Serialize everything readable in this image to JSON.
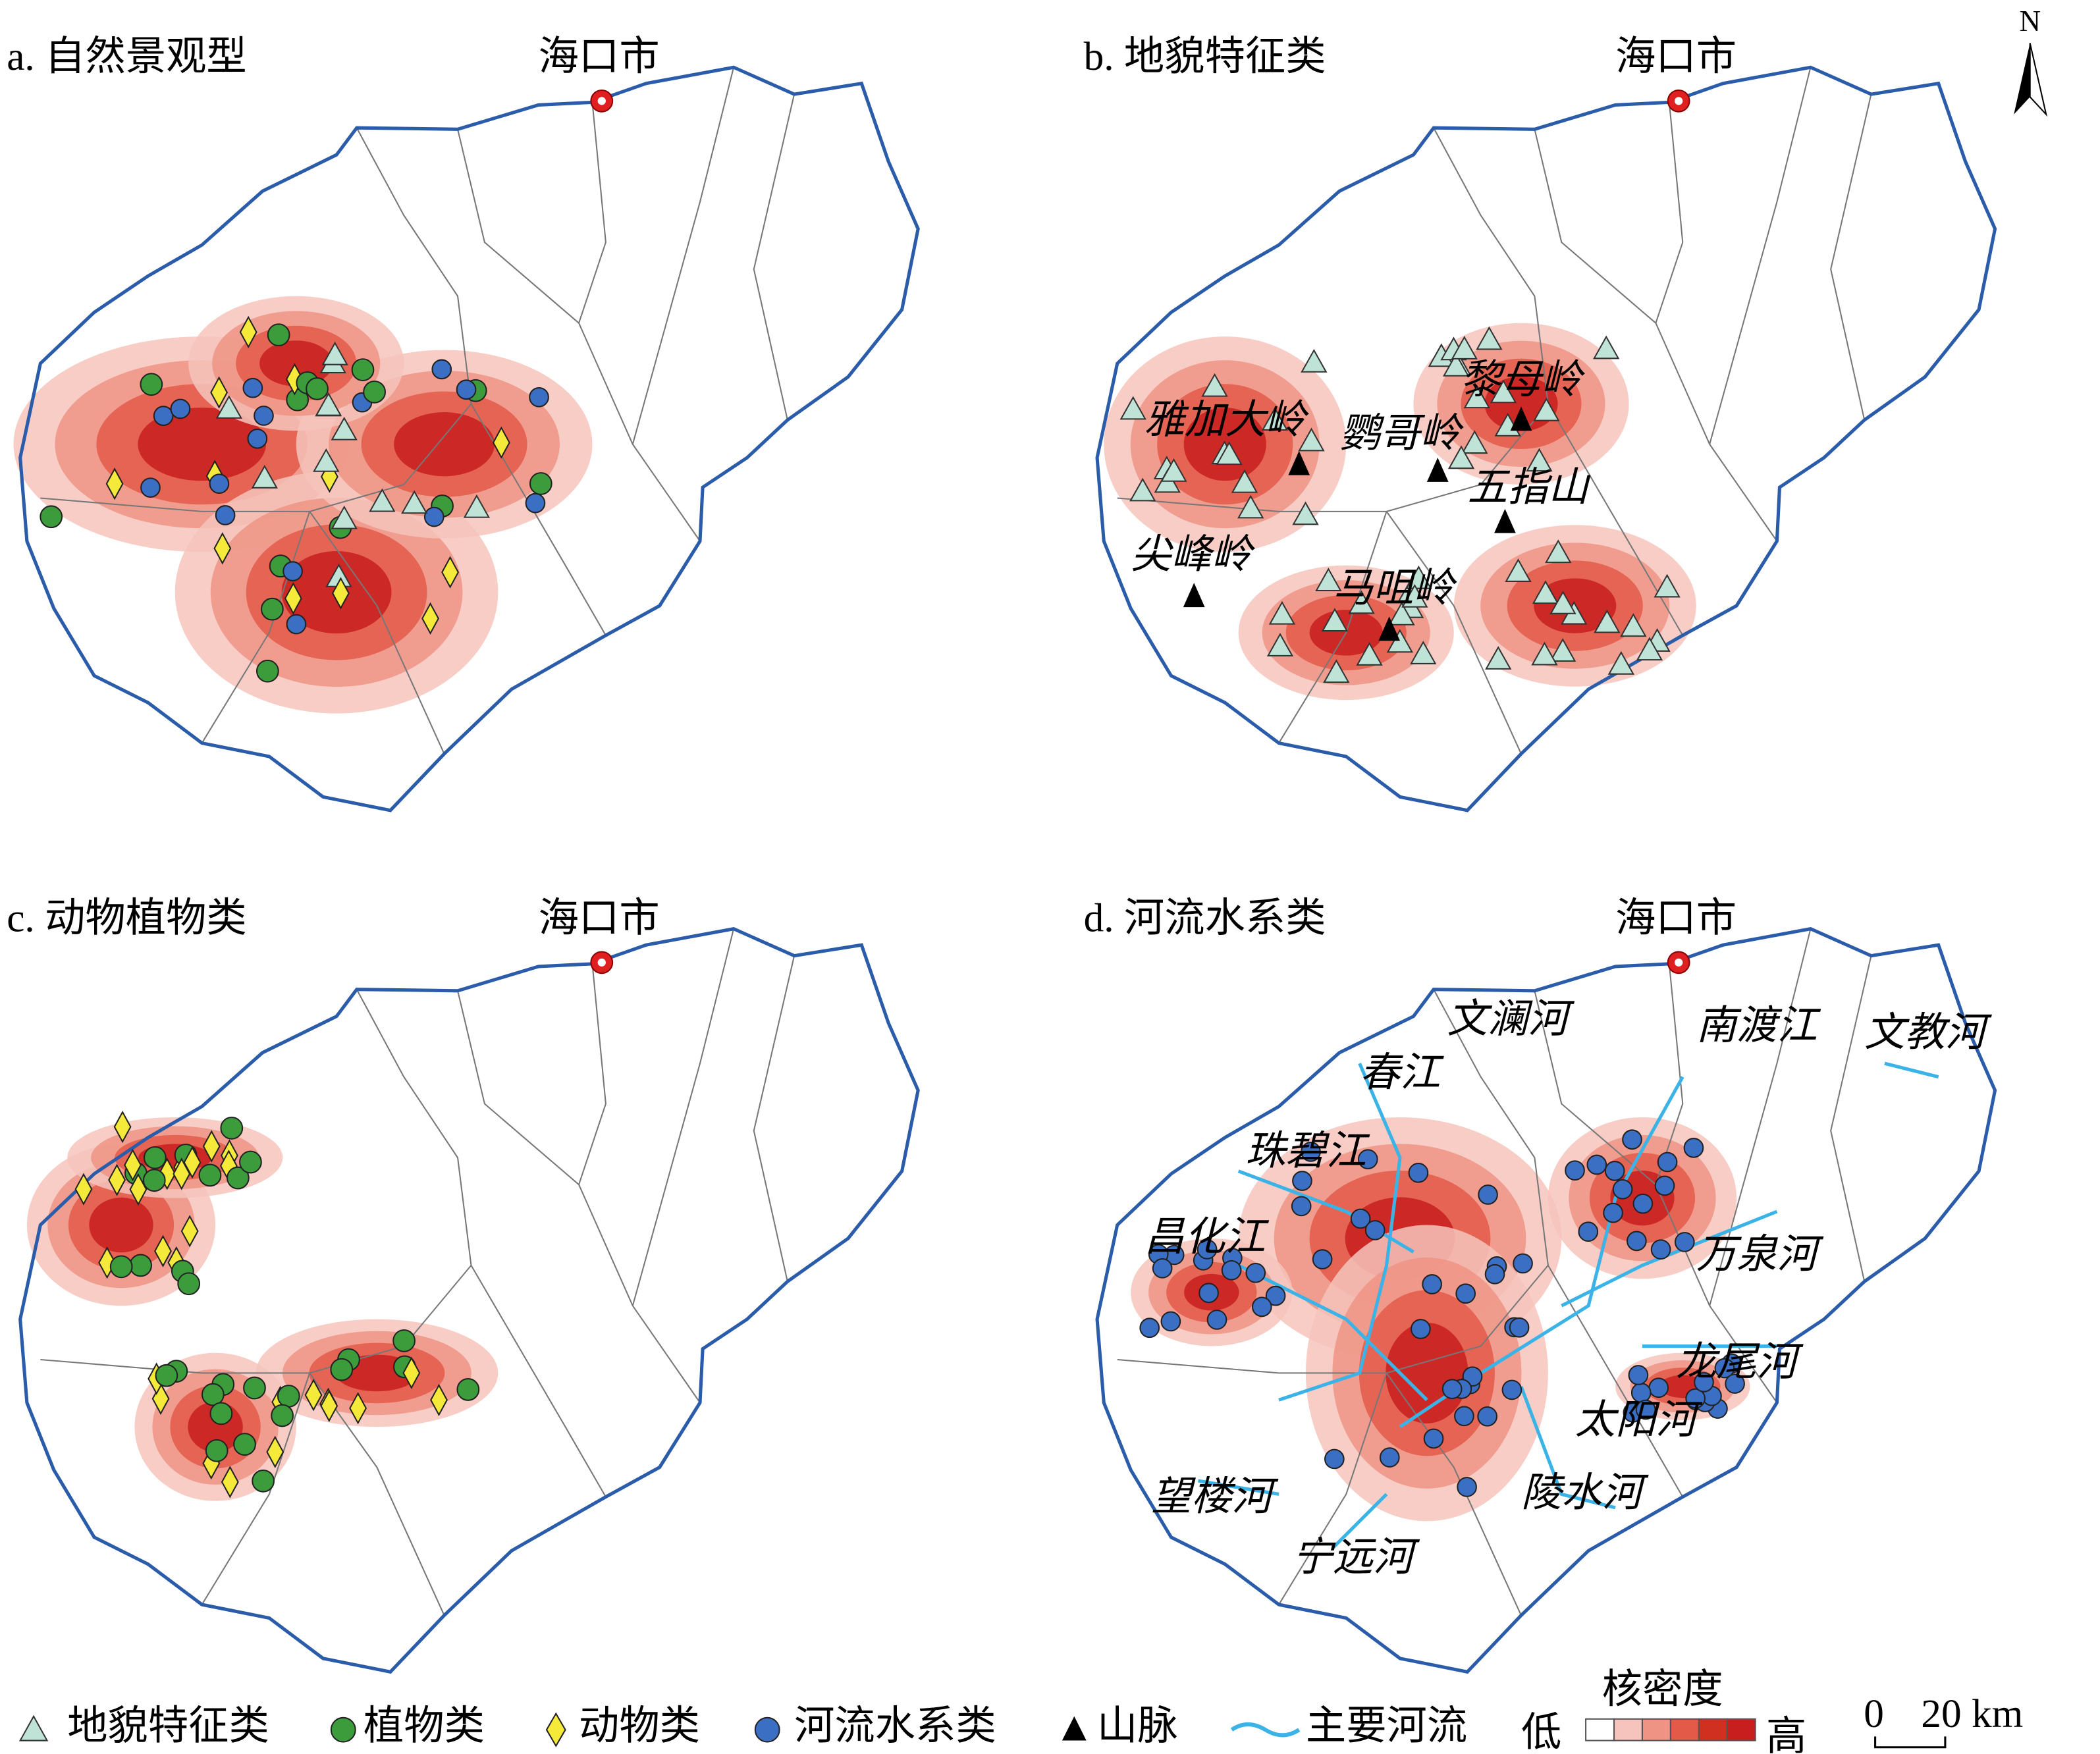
{
  "north_label": "N",
  "panels": [
    {
      "title": "a. 自然景观型",
      "city": "海口市"
    },
    {
      "title": "b. 地貌特征类",
      "city": "海口市",
      "labels": [
        "雅加大岭",
        "鹦哥岭",
        "黎母岭",
        "五指山",
        "尖峰岭",
        "马咀岭"
      ]
    },
    {
      "title": "c. 动物植物类",
      "city": "海口市"
    },
    {
      "title": "d. 河流水系类",
      "city": "海口市",
      "labels": [
        "文澜河",
        "南渡江",
        "文教河",
        "春江",
        "珠碧江",
        "昌化江",
        "万泉河",
        "龙尾河",
        "太阳河",
        "望楼河",
        "陵水河",
        "宁远河"
      ]
    }
  ],
  "legend": {
    "items": [
      "地貌特征类",
      "植物类",
      "动物类",
      "河流水系类",
      "山脉",
      "主要河流"
    ],
    "density_title": "核密度",
    "low": "低",
    "high": "高"
  },
  "scale_bar": {
    "zero": "0",
    "label": "20 km"
  }
}
